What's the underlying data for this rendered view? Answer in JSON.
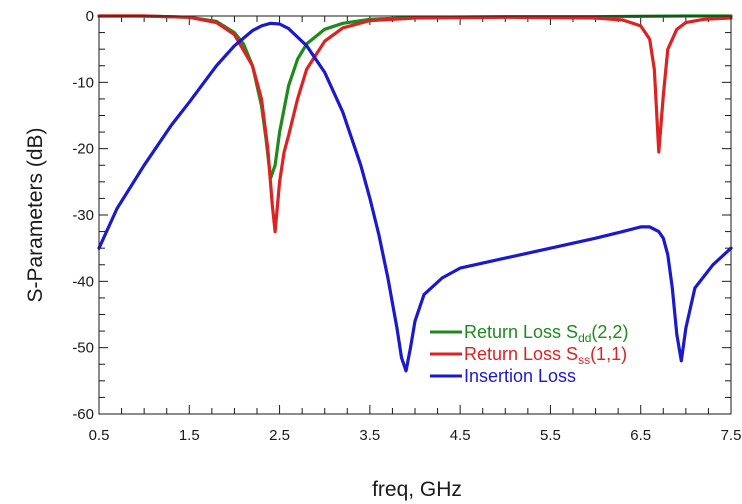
{
  "chart_data": {
    "type": "line",
    "title": "",
    "xlabel": "freq, GHz",
    "ylabel": "S-Parameters (dB)",
    "xlim": [
      0.5,
      7.5
    ],
    "ylim": [
      -60,
      0
    ],
    "x_ticks": [
      "0.5",
      "1.5",
      "2.5",
      "3.5",
      "4.5",
      "5.5",
      "6.5",
      "7.5"
    ],
    "y_ticks": [
      "0",
      "-10",
      "-20",
      "-30",
      "-40",
      "-50",
      "-60"
    ],
    "grid": false,
    "legend_position": "bottom-center",
    "series": [
      {
        "name": "Return Loss Sdd(2,2)",
        "legend_prefix": "Return Loss S",
        "legend_sub": "dd",
        "legend_suffix": "(2,2)",
        "color": "#1e8a1e",
        "x": [
          0.5,
          1.0,
          1.5,
          1.8,
          2.0,
          2.1,
          2.2,
          2.3,
          2.35,
          2.4,
          2.45,
          2.5,
          2.6,
          2.7,
          2.8,
          3.0,
          3.2,
          3.5,
          4.0,
          5.0,
          6.0,
          7.0,
          7.5
        ],
        "y": [
          0,
          0,
          -0.2,
          -0.8,
          -2.5,
          -4.2,
          -7.5,
          -13.5,
          -18.5,
          -24.5,
          -22.5,
          -17.5,
          -10.5,
          -6.5,
          -4.2,
          -2.0,
          -1.1,
          -0.5,
          -0.2,
          -0.1,
          -0.1,
          0,
          0
        ]
      },
      {
        "name": "Return Loss Sss(1,1)",
        "legend_prefix": "Return Loss S",
        "legend_sub": "ss",
        "legend_suffix": "(1,1)",
        "color": "#dd2222",
        "x": [
          0.5,
          1.0,
          1.5,
          1.8,
          2.0,
          2.2,
          2.3,
          2.37,
          2.42,
          2.45,
          2.5,
          2.55,
          2.6,
          2.7,
          2.8,
          3.0,
          3.2,
          3.5,
          4.0,
          5.0,
          6.0,
          6.3,
          6.5,
          6.6,
          6.65,
          6.7,
          6.75,
          6.8,
          6.9,
          7.0,
          7.2,
          7.5
        ],
        "y": [
          0,
          0,
          -0.2,
          -1.0,
          -2.8,
          -7.5,
          -12.5,
          -20.0,
          -28.5,
          -32.5,
          -25.0,
          -20.5,
          -18.0,
          -12.5,
          -8.0,
          -3.8,
          -1.8,
          -0.7,
          -0.3,
          -0.2,
          -0.3,
          -0.6,
          -1.5,
          -3.5,
          -8.0,
          -20.5,
          -12.0,
          -5.0,
          -2.0,
          -1.0,
          -0.5,
          -0.3
        ]
      },
      {
        "name": "Insertion Loss",
        "legend_prefix": "Insertion Loss",
        "legend_sub": "",
        "legend_suffix": "",
        "color": "#1a1acc",
        "x": [
          0.5,
          0.7,
          1.0,
          1.3,
          1.5,
          1.8,
          2.0,
          2.2,
          2.3,
          2.4,
          2.5,
          2.6,
          2.8,
          3.0,
          3.2,
          3.4,
          3.5,
          3.6,
          3.7,
          3.8,
          3.85,
          3.9,
          3.95,
          4.0,
          4.1,
          4.3,
          4.5,
          5.0,
          5.5,
          6.0,
          6.3,
          6.5,
          6.6,
          6.7,
          6.75,
          6.8,
          6.85,
          6.9,
          6.95,
          7.0,
          7.1,
          7.3,
          7.5
        ],
        "y": [
          -35.0,
          -29.0,
          -22.5,
          -16.5,
          -13.0,
          -7.5,
          -4.5,
          -2.2,
          -1.5,
          -1.1,
          -1.2,
          -1.9,
          -4.5,
          -8.5,
          -14.5,
          -22.5,
          -27.5,
          -33.0,
          -39.5,
          -47.0,
          -51.5,
          -53.5,
          -50.0,
          -46.0,
          -42.0,
          -39.5,
          -38.0,
          -36.5,
          -35.0,
          -33.5,
          -32.5,
          -31.8,
          -31.8,
          -32.5,
          -33.5,
          -36.0,
          -41.0,
          -48.0,
          -52.0,
          -47.0,
          -41.0,
          -37.5,
          -35.0
        ]
      }
    ]
  }
}
